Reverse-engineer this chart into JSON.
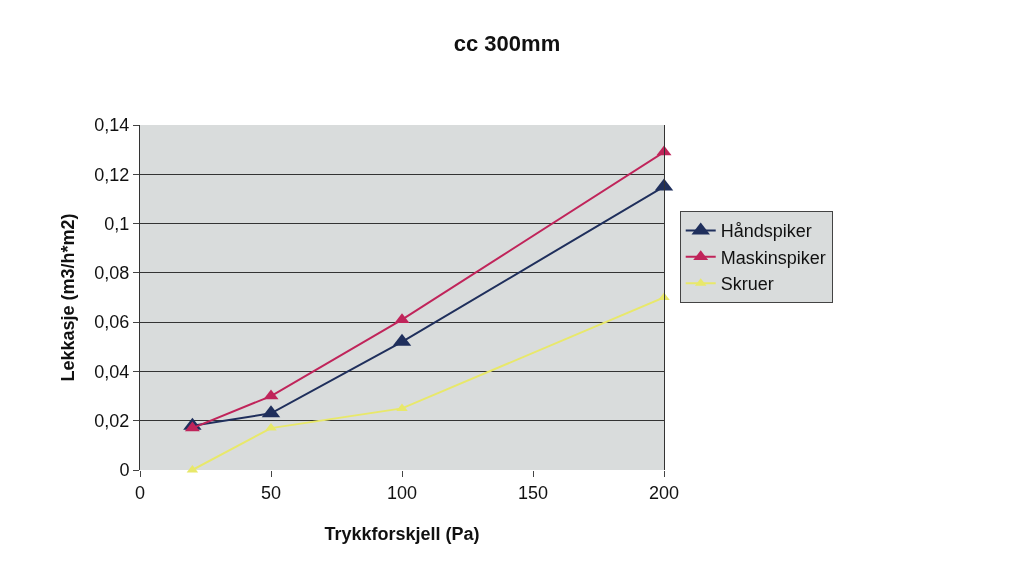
{
  "chart_data": {
    "type": "line",
    "title": "cc 300mm",
    "xlabel": "Trykkforskjell (Pa)",
    "ylabel": "Lekkasje (m3/h*m2)",
    "x": [
      20,
      50,
      100,
      200
    ],
    "series": [
      {
        "name": "Håndspiker",
        "color": "#1f2f5c",
        "values": [
          0.018,
          0.023,
          0.052,
          0.115
        ]
      },
      {
        "name": "Maskinspiker",
        "color": "#c0245a",
        "values": [
          0.017,
          0.03,
          0.061,
          0.129
        ]
      },
      {
        "name": "Skruer",
        "color": "#e8e86a",
        "values": [
          0,
          0.017,
          0.025,
          0.07
        ]
      }
    ],
    "xlim": [
      0,
      200
    ],
    "xticks": [
      0,
      50,
      100,
      150,
      200
    ],
    "ylim": [
      0,
      0.14
    ],
    "yticks": [
      {
        "value": 0,
        "label": "0"
      },
      {
        "value": 0.02,
        "label": "0,02"
      },
      {
        "value": 0.04,
        "label": "0,04"
      },
      {
        "value": 0.06,
        "label": "0,06"
      },
      {
        "value": 0.08,
        "label": "0,08"
      },
      {
        "value": 0.1,
        "label": "0,1"
      },
      {
        "value": 0.12,
        "label": "0,12"
      },
      {
        "value": 0.14,
        "label": "0,14"
      }
    ],
    "grid": "y",
    "legend": "right",
    "marker": "triangle",
    "line_style": "solid"
  }
}
